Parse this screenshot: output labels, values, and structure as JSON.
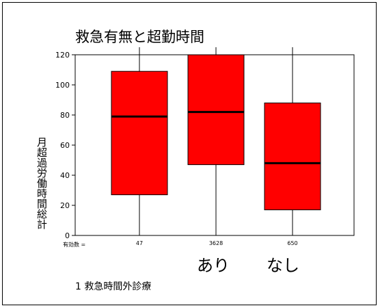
{
  "chart_data": {
    "type": "boxplot",
    "title": "救急有無と超勤時間",
    "ylabel": "月超過労働時間総計",
    "ylim": [
      0,
      120
    ],
    "yticks": [
      0,
      20,
      40,
      60,
      80,
      100,
      120
    ],
    "n_label": "有効数 =",
    "boxes": [
      {
        "n": "47",
        "q1": 27,
        "median": 79,
        "q3": 109,
        "whisker_low": 0,
        "whisker_high": 125
      },
      {
        "n": "3628",
        "q1": 47,
        "median": 82,
        "q3": 120,
        "whisker_low": 0,
        "whisker_high": 125
      },
      {
        "n": "650",
        "q1": 17,
        "median": 48,
        "q3": 88,
        "whisker_low": 0,
        "whisker_high": 125
      }
    ],
    "group_labels": [
      "あり",
      "なし"
    ],
    "footnote": "1  救急時間外診療",
    "colors": {
      "box_fill": "#ff0000",
      "line": "#000000"
    }
  }
}
